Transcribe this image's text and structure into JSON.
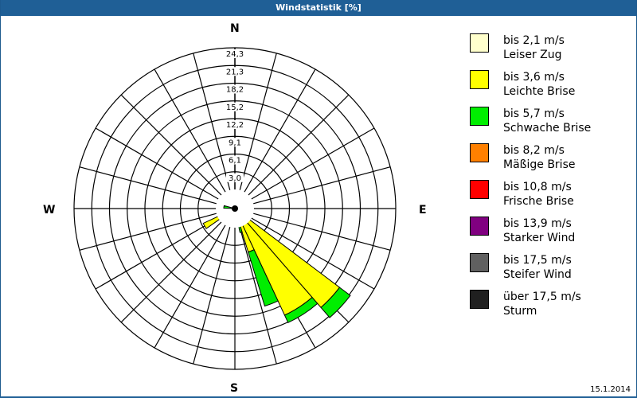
{
  "title": "Windstatistik [%]",
  "date": "15.1.2014",
  "compass": {
    "n": "N",
    "e": "E",
    "s": "S",
    "w": "W"
  },
  "legend": [
    {
      "range": "bis 2,1 m/s",
      "name": "Leiser Zug",
      "color": "#ffffcc"
    },
    {
      "range": "bis 3,6 m/s",
      "name": "Leichte Brise",
      "color": "#ffff00"
    },
    {
      "range": "bis 5,7 m/s",
      "name": "Schwache Brise",
      "color": "#00ee00"
    },
    {
      "range": "bis 8,2 m/s",
      "name": "Mäßige Brise",
      "color": "#ff8000"
    },
    {
      "range": "bis 10,8 m/s",
      "name": "Frische Brise",
      "color": "#ff0000"
    },
    {
      "range": "bis 13,9 m/s",
      "name": "Starker Wind",
      "color": "#800080"
    },
    {
      "range": "bis 17,5 m/s",
      "name": "Steifer Wind",
      "color": "#606060"
    },
    {
      "range": "über 17,5 m/s",
      "name": "Sturm",
      "color": "#202020"
    }
  ],
  "chart_data": {
    "type": "wind-rose",
    "title": "Windstatistik [%]",
    "ring_labels": [
      "3,0",
      "6,1",
      "9,1",
      "12,2",
      "15,2",
      "18,2",
      "21,3",
      "24,3"
    ],
    "ring_step": 3.04,
    "spokes_deg": 15,
    "series": [
      "Leiser Zug",
      "Leichte Brise",
      "Schwache Brise"
    ],
    "petals": [
      {
        "from": 127,
        "to": 139,
        "segments": [
          {
            "class": 1,
            "value": 22.5
          },
          {
            "class": 2,
            "value": 2.3
          }
        ]
      },
      {
        "from": 139,
        "to": 155,
        "segments": [
          {
            "class": 1,
            "value": 20.2
          },
          {
            "class": 2,
            "value": 1.4
          }
        ]
      },
      {
        "from": 155,
        "to": 163,
        "segments": [
          {
            "class": 1,
            "value": 7.8
          },
          {
            "class": 2,
            "value": 9.7
          }
        ]
      },
      {
        "from": 163,
        "to": 168,
        "segments": [
          {
            "class": 1,
            "value": 2.5
          },
          {
            "class": 2,
            "value": 1.7
          }
        ]
      },
      {
        "from": 168,
        "to": 175,
        "segments": [
          {
            "class": 1,
            "value": 1.2
          }
        ]
      },
      {
        "from": 200,
        "to": 210,
        "segments": [
          {
            "class": 1,
            "value": 1.0
          }
        ]
      },
      {
        "from": 215,
        "to": 225,
        "segments": [
          {
            "class": 1,
            "value": 1.6
          }
        ]
      },
      {
        "from": 235,
        "to": 245,
        "segments": [
          {
            "class": 0,
            "value": 3.0
          },
          {
            "class": 1,
            "value": 3.0
          }
        ]
      },
      {
        "from": 245,
        "to": 252,
        "segments": [
          {
            "class": 1,
            "value": 1.3
          }
        ]
      },
      {
        "from": 255,
        "to": 262,
        "segments": [
          {
            "class": 1,
            "value": 0.8
          }
        ]
      }
    ]
  }
}
